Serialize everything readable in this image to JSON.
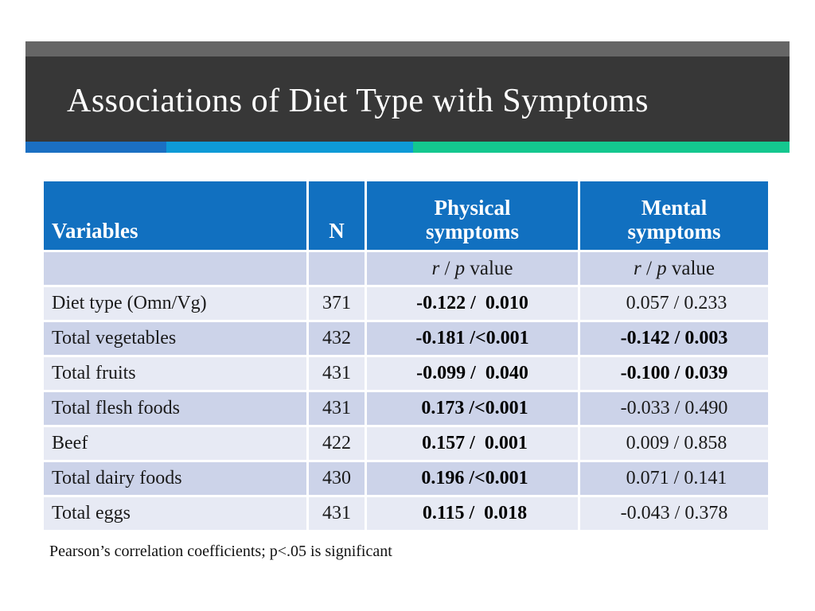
{
  "slide": {
    "title": "Associations of Diet Type with Symptoms",
    "colors": {
      "gray_strip": "#666666",
      "title_band": "#373737",
      "accent_dark_blue": "#1b6fc2",
      "accent_light_blue": "#0e9ad6",
      "accent_green": "#14c78f",
      "header_blue": "#1170c0",
      "row_dark": "#ccd3e9",
      "row_light": "#e7eaf4"
    }
  },
  "table": {
    "header": {
      "variables": "Variables",
      "n": "N",
      "physical": "Physical symptoms",
      "mental": "Mental symptoms"
    },
    "subheader": {
      "r": "r",
      "sep": " / ",
      "p": "p",
      "value": " value"
    },
    "rows": [
      {
        "variable": "Diet type (Omn/Vg)",
        "n": "371",
        "physical": "-0.122 /  0.010",
        "physical_bold": true,
        "mental": " 0.057 / 0.233",
        "mental_bold": false
      },
      {
        "variable": "Total vegetables",
        "n": "432",
        "physical": "-0.181 /<0.001",
        "physical_bold": true,
        "mental": "-0.142 / 0.003",
        "mental_bold": true
      },
      {
        "variable": "Total fruits",
        "n": "431",
        "physical": "-0.099 /  0.040",
        "physical_bold": true,
        "mental": "-0.100 / 0.039",
        "mental_bold": true
      },
      {
        "variable": "Total flesh foods",
        "n": "431",
        "physical": " 0.173 /<0.001",
        "physical_bold": true,
        "mental": "-0.033 / 0.490",
        "mental_bold": false
      },
      {
        "variable": "Beef",
        "n": "422",
        "physical": " 0.157 /  0.001",
        "physical_bold": true,
        "mental": " 0.009 / 0.858",
        "mental_bold": false
      },
      {
        "variable": "Total dairy foods",
        "n": "430",
        "physical": " 0.196 /<0.001",
        "physical_bold": true,
        "mental": " 0.071 / 0.141",
        "mental_bold": false
      },
      {
        "variable": "Total eggs",
        "n": "431",
        "physical": " 0.115 /  0.018",
        "physical_bold": true,
        "mental": "-0.043 / 0.378",
        "mental_bold": false
      }
    ],
    "footnote": "Pearson’s correlation coefficients; p<.05 is significant"
  },
  "chart_data": {
    "type": "table",
    "title": "Associations of Diet Type with Symptoms",
    "columns": [
      "Variables",
      "N",
      "Physical symptoms r/p value",
      "Mental symptoms r/p value"
    ],
    "rows": [
      [
        "Diet type (Omn/Vg)",
        371,
        "-0.122 / 0.010",
        "0.057 / 0.233"
      ],
      [
        "Total vegetables",
        432,
        "-0.181 / <0.001",
        "-0.142 / 0.003"
      ],
      [
        "Total fruits",
        431,
        "-0.099 / 0.040",
        "-0.100 / 0.039"
      ],
      [
        "Total flesh foods",
        431,
        "0.173 / <0.001",
        "-0.033 / 0.490"
      ],
      [
        "Beef",
        422,
        "0.157 / 0.001",
        "0.009 / 0.858"
      ],
      [
        "Total dairy foods",
        430,
        "0.196 / <0.001",
        "0.071 / 0.141"
      ],
      [
        "Total eggs",
        431,
        "0.115 / 0.018",
        "-0.043 / 0.378"
      ]
    ]
  }
}
